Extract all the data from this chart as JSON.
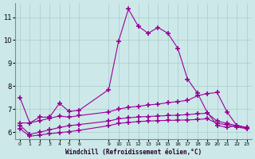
{
  "background_color": "#cce8e8",
  "grid_color": "#aacccc",
  "line_color": "#990099",
  "xlim": [
    -0.5,
    23.5
  ],
  "ylim": [
    5.7,
    11.6
  ],
  "yticks": [
    6,
    7,
    8,
    9,
    10,
    11
  ],
  "xlabel": "Windchill (Refroidissement éolien,°C)",
  "xtick_positions": [
    0,
    1,
    2,
    3,
    4,
    5,
    6,
    9,
    10,
    11,
    12,
    13,
    14,
    15,
    16,
    17,
    18,
    19,
    20,
    21,
    22,
    23
  ],
  "xtick_labels": [
    "0",
    "1",
    "2",
    "3",
    "4",
    "5",
    "6",
    "9",
    "10",
    "11",
    "12",
    "13",
    "14",
    "15",
    "16",
    "17",
    "18",
    "19",
    "20",
    "21",
    "22",
    "23"
  ],
  "line1_x": [
    0,
    1,
    2,
    3,
    4,
    5,
    6,
    9,
    10,
    11,
    12,
    13,
    14,
    15,
    16,
    17,
    18,
    19,
    20,
    21,
    22,
    23
  ],
  "line1_y": [
    7.5,
    6.4,
    6.65,
    6.65,
    7.25,
    6.9,
    6.95,
    7.85,
    9.95,
    11.35,
    10.6,
    10.3,
    10.55,
    10.3,
    9.65,
    8.3,
    7.7,
    6.85,
    6.3,
    6.2,
    6.3,
    6.2
  ],
  "line2_x": [
    0,
    1,
    2,
    3,
    4,
    5,
    6,
    9,
    10,
    11,
    12,
    13,
    14,
    15,
    16,
    17,
    18,
    19,
    20,
    21,
    22,
    23
  ],
  "line2_y": [
    6.4,
    6.4,
    6.5,
    6.6,
    6.7,
    6.65,
    6.72,
    6.88,
    7.0,
    7.08,
    7.12,
    7.18,
    7.22,
    7.28,
    7.33,
    7.38,
    7.58,
    7.68,
    7.72,
    6.88,
    6.28,
    6.18
  ],
  "line3_x": [
    0,
    1,
    2,
    3,
    4,
    5,
    6,
    9,
    10,
    11,
    12,
    13,
    14,
    15,
    16,
    17,
    18,
    19,
    20,
    21,
    22,
    23
  ],
  "line3_y": [
    6.3,
    5.9,
    6.0,
    6.1,
    6.2,
    6.28,
    6.33,
    6.48,
    6.58,
    6.62,
    6.66,
    6.68,
    6.7,
    6.72,
    6.74,
    6.76,
    6.8,
    6.82,
    6.48,
    6.38,
    6.28,
    6.18
  ],
  "line4_x": [
    0,
    1,
    2,
    3,
    4,
    5,
    6,
    9,
    10,
    11,
    12,
    13,
    14,
    15,
    16,
    17,
    18,
    19,
    20,
    21,
    22,
    23
  ],
  "line4_y": [
    6.15,
    5.82,
    5.88,
    5.93,
    5.98,
    6.02,
    6.08,
    6.28,
    6.38,
    6.42,
    6.46,
    6.48,
    6.5,
    6.51,
    6.52,
    6.53,
    6.55,
    6.58,
    6.38,
    6.32,
    6.22,
    6.15
  ]
}
